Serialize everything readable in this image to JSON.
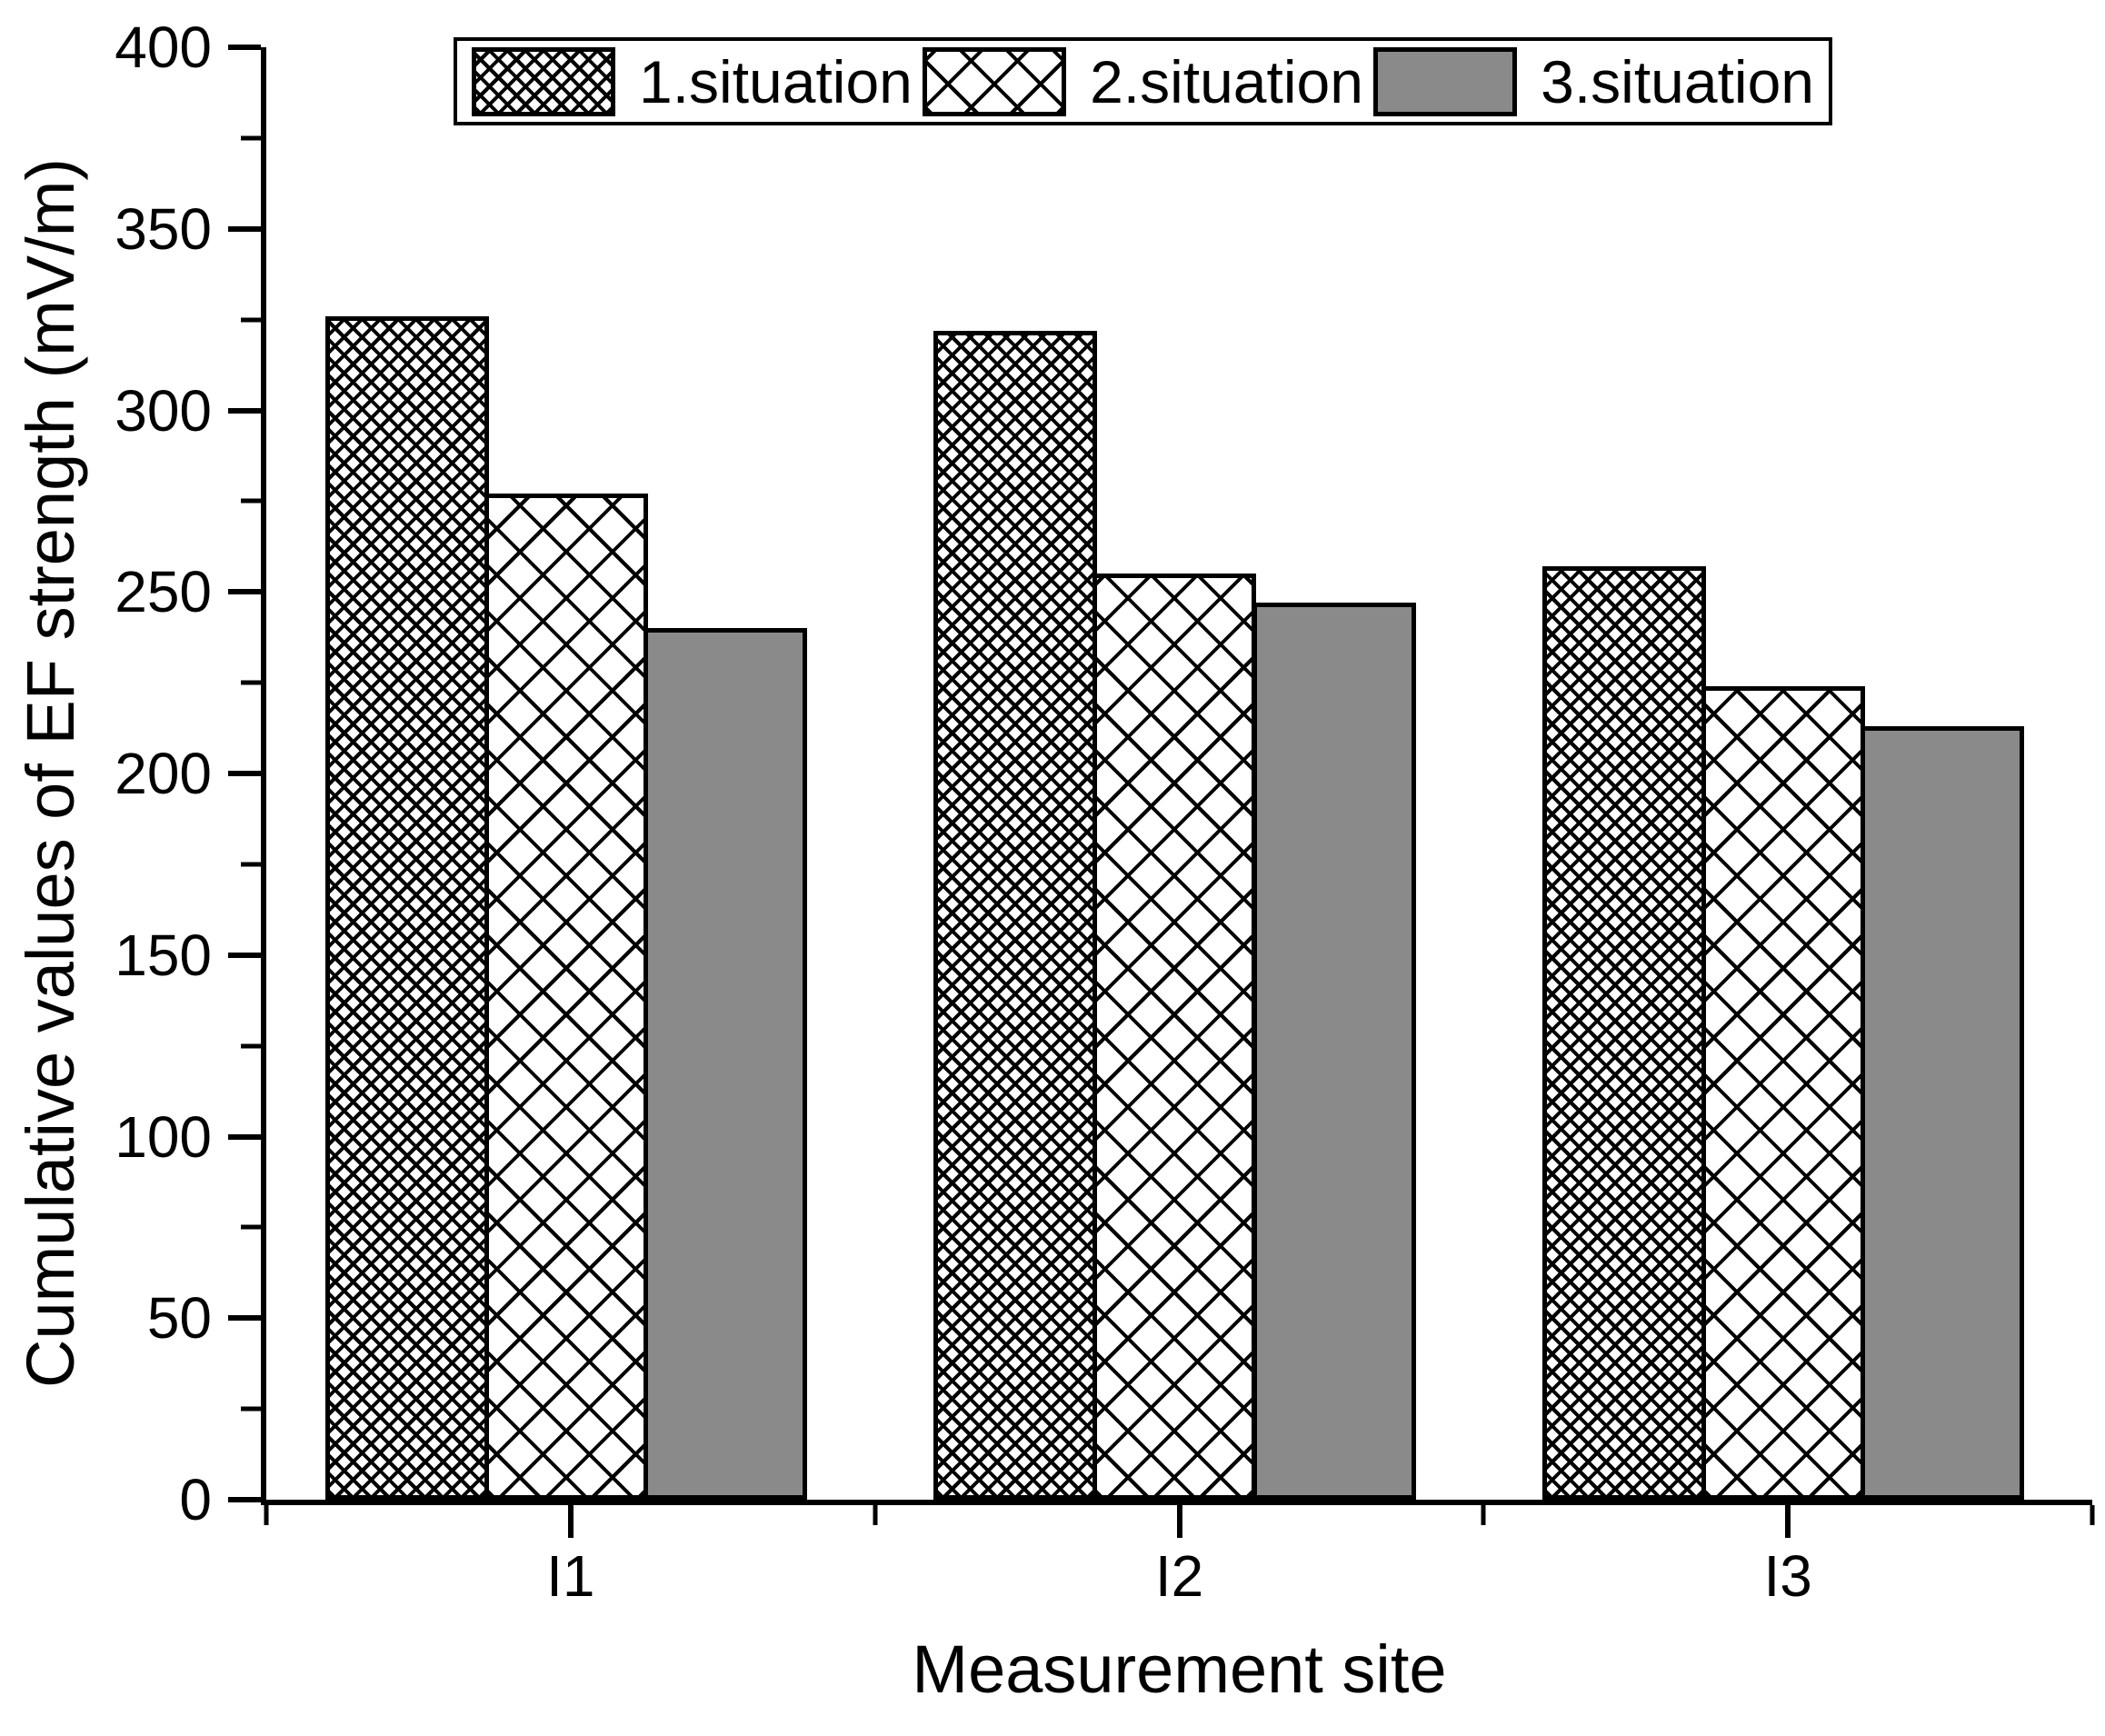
{
  "figure": {
    "background": "#ffffff",
    "axis_color": "#000000",
    "bar_outline_color": "#000000"
  },
  "chart_data": {
    "type": "bar",
    "title": "",
    "xlabel": "Measurement site",
    "ylabel": "Cumulative values of EF strength (mV/m)",
    "categories": [
      "I1",
      "I2",
      "I3"
    ],
    "series": [
      {
        "name": "1.situation",
        "pattern": "dense-crosshatch",
        "color": "#ffffff",
        "values": [
          326,
          322,
          257
        ]
      },
      {
        "name": "2.situation",
        "pattern": "wide-crosshatch",
        "color": "#ffffff",
        "values": [
          277,
          255,
          224
        ]
      },
      {
        "name": "3.situation",
        "pattern": "solid-gray",
        "color": "#8a8a8a",
        "values": [
          240,
          247,
          213
        ]
      }
    ],
    "ylim": [
      0,
      400
    ],
    "yticks_major": [
      0,
      50,
      100,
      150,
      200,
      250,
      300,
      350,
      400
    ],
    "yticks_minor_step": 25,
    "grid": false,
    "legend_position": "top-center"
  }
}
